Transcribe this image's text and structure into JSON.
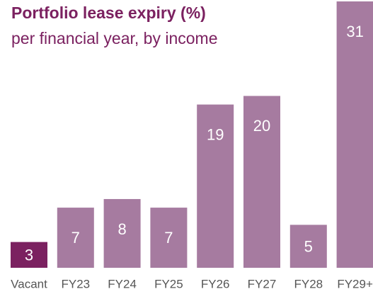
{
  "chart_data": {
    "type": "bar",
    "title": "Portfolio lease expiry (%)",
    "subtitle": "per financial year, by income",
    "categories": [
      "Vacant",
      "FY23",
      "FY24",
      "FY25",
      "FY26",
      "FY27",
      "FY28",
      "FY29+"
    ],
    "values": [
      3,
      7,
      8,
      7,
      19,
      20,
      5,
      31
    ],
    "colors": [
      "#7b2160",
      "#a67ba0",
      "#a67ba0",
      "#a67ba0",
      "#a67ba0",
      "#a67ba0",
      "#a67ba0",
      "#a67ba0"
    ]
  }
}
